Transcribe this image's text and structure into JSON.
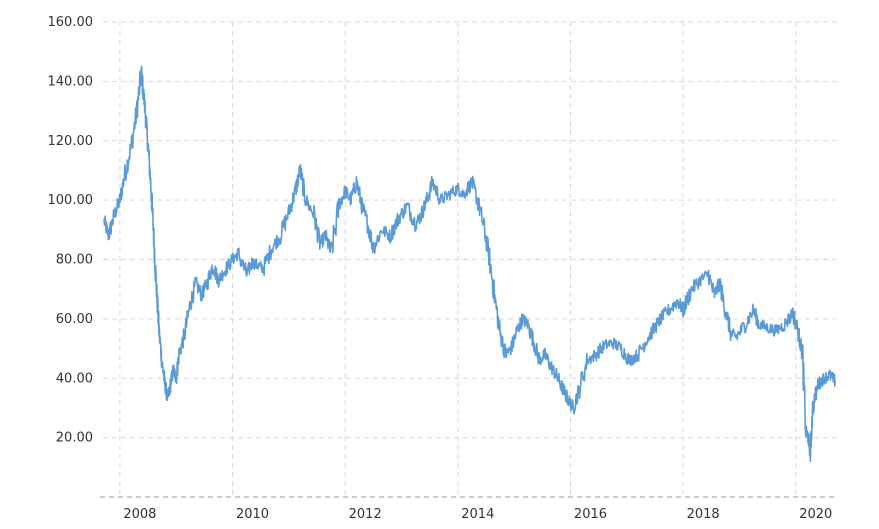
{
  "chart_data": {
    "type": "line",
    "title": "",
    "xlabel": "",
    "ylabel": "",
    "xlim": [
      2007.7,
      2020.75
    ],
    "ylim": [
      0,
      160
    ],
    "y_ticks": [
      {
        "value": 160,
        "label": "160.00"
      },
      {
        "value": 140,
        "label": "140.00"
      },
      {
        "value": 120,
        "label": "120.00"
      },
      {
        "value": 100,
        "label": "100.00"
      },
      {
        "value": 80,
        "label": "80.00"
      },
      {
        "value": 60,
        "label": "60.00"
      },
      {
        "value": 40,
        "label": "40.00"
      },
      {
        "value": 20,
        "label": "20.00"
      }
    ],
    "x_ticks": [
      {
        "value": 2008,
        "label": "2008"
      },
      {
        "value": 2010,
        "label": "2010"
      },
      {
        "value": 2012,
        "label": "2012"
      },
      {
        "value": 2014,
        "label": "2014"
      },
      {
        "value": 2016,
        "label": "2016"
      },
      {
        "value": 2018,
        "label": "2018"
      },
      {
        "value": 2020,
        "label": "2020"
      }
    ],
    "grid": true,
    "legend": "none",
    "series": [
      {
        "color": "#5b9bd5",
        "x": [
          2007.72,
          2007.8,
          2007.9,
          2008.0,
          2008.08,
          2008.2,
          2008.3,
          2008.38,
          2008.45,
          2008.5,
          2008.55,
          2008.6,
          2008.65,
          2008.7,
          2008.75,
          2008.8,
          2008.85,
          2008.9,
          2008.95,
          2009.0,
          2009.05,
          2009.15,
          2009.25,
          2009.35,
          2009.45,
          2009.55,
          2009.65,
          2009.75,
          2009.85,
          2010.0,
          2010.1,
          2010.25,
          2010.35,
          2010.45,
          2010.55,
          2010.7,
          2010.85,
          2011.0,
          2011.1,
          2011.2,
          2011.3,
          2011.45,
          2011.55,
          2011.65,
          2011.75,
          2011.9,
          2012.0,
          2012.1,
          2012.2,
          2012.3,
          2012.4,
          2012.5,
          2012.65,
          2012.8,
          2012.95,
          2013.1,
          2013.25,
          2013.35,
          2013.45,
          2013.55,
          2013.7,
          2013.85,
          2014.0,
          2014.1,
          2014.25,
          2014.35,
          2014.45,
          2014.55,
          2014.65,
          2014.75,
          2014.85,
          2014.95,
          2015.05,
          2015.15,
          2015.25,
          2015.35,
          2015.45,
          2015.55,
          2015.65,
          2015.75,
          2015.85,
          2015.95,
          2016.05,
          2016.15,
          2016.3,
          2016.45,
          2016.6,
          2016.75,
          2016.9,
          2017.05,
          2017.2,
          2017.35,
          2017.5,
          2017.6,
          2017.75,
          2017.9,
          2018.0,
          2018.15,
          2018.3,
          2018.45,
          2018.55,
          2018.65,
          2018.75,
          2018.85,
          2018.95,
          2019.1,
          2019.25,
          2019.35,
          2019.5,
          2019.65,
          2019.8,
          2019.95,
          2020.05,
          2020.12,
          2020.18,
          2020.22,
          2020.26,
          2020.3,
          2020.4,
          2020.5,
          2020.6,
          2020.7
        ],
        "values": [
          93,
          88,
          95,
          100,
          108,
          118,
          130,
          143,
          130,
          118,
          105,
          88,
          70,
          55,
          45,
          38,
          33,
          38,
          43,
          40,
          48,
          55,
          65,
          72,
          68,
          72,
          78,
          73,
          76,
          80,
          82,
          75,
          79,
          78,
          77,
          84,
          88,
          96,
          102,
          110,
          100,
          95,
          85,
          88,
          82,
          99,
          103,
          100,
          106,
          98,
          92,
          84,
          90,
          88,
          94,
          98,
          92,
          95,
          100,
          106,
          100,
          102,
          104,
          102,
          106,
          100,
          92,
          82,
          68,
          55,
          48,
          50,
          56,
          60,
          58,
          52,
          46,
          48,
          44,
          41,
          37,
          33,
          30,
          36,
          46,
          48,
          51,
          52,
          50,
          46,
          48,
          53,
          57,
          60,
          63,
          66,
          63,
          70,
          73,
          75,
          68,
          72,
          63,
          55,
          54,
          58,
          63,
          58,
          57,
          56,
          58,
          62,
          55,
          48,
          22,
          20,
          15,
          30,
          38,
          40,
          41,
          39
        ]
      }
    ]
  }
}
